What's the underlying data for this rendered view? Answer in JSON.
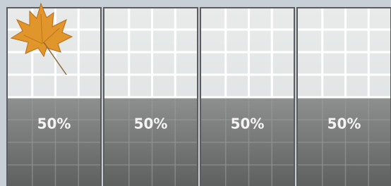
{
  "panels": [
    {
      "value": 50,
      "label": "50%"
    },
    {
      "value": 50,
      "label": "50%"
    },
    {
      "value": 50,
      "label": "50%"
    },
    {
      "value": 50,
      "label": "50%"
    }
  ]
}
